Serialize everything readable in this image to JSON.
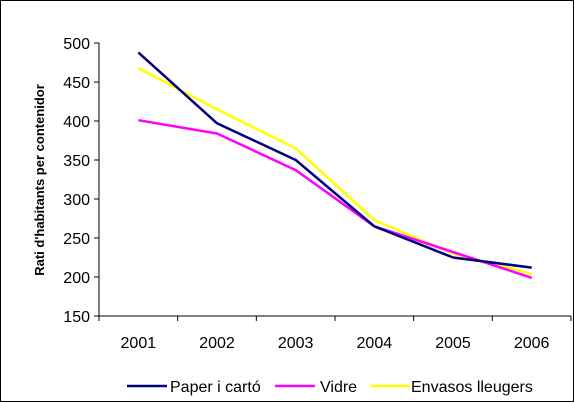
{
  "chart_data": {
    "type": "line",
    "title": "",
    "xlabel": "",
    "ylabel": "Rati d'habitants per contenidor",
    "categories": [
      "2001",
      "2002",
      "2003",
      "2004",
      "2005",
      "2006"
    ],
    "ylim": [
      150,
      500
    ],
    "yticks": [
      150,
      200,
      250,
      300,
      350,
      400,
      450,
      500
    ],
    "grid": false,
    "legend_position": "bottom",
    "series": [
      {
        "name": "Paper i cartó",
        "color": "#000080",
        "values": [
          488,
          397,
          350,
          265,
          225,
          212
        ]
      },
      {
        "name": "Vidre",
        "color": "#ff00ff",
        "values": [
          401,
          384,
          337,
          265,
          232,
          199
        ]
      },
      {
        "name": "Envasos lleugers",
        "color": "#ffff00",
        "values": [
          468,
          415,
          365,
          273,
          230,
          204
        ]
      }
    ]
  }
}
